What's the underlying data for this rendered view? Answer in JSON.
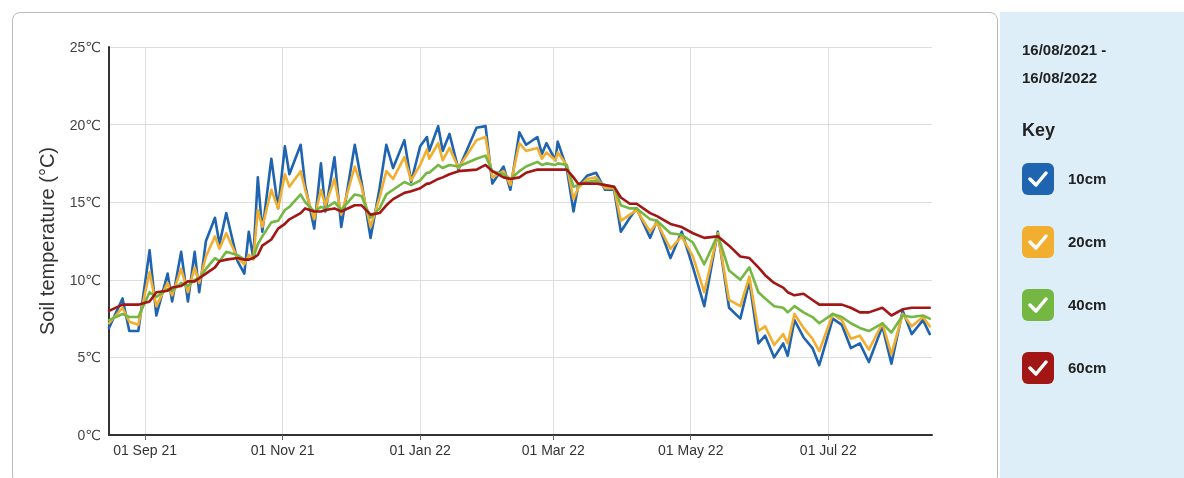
{
  "chart_data": {
    "type": "line",
    "subtitle": "16/08/2021 - 16/08/2022",
    "ylabel": "Soil temperature (°C)",
    "legend_title": "Key",
    "legend": "right",
    "grid": true,
    "marker": "none",
    "line_style": "solid",
    "xlim": [
      "2021-08-16",
      "2022-08-16"
    ],
    "xticks": [
      {
        "value": "2021-09-01",
        "label": "01 Sep 21"
      },
      {
        "value": "2021-11-01",
        "label": "01 Nov 21"
      },
      {
        "value": "2022-01-01",
        "label": "01 Jan 22"
      },
      {
        "value": "2022-03-01",
        "label": "01 Mar 22"
      },
      {
        "value": "2022-05-01",
        "label": "01 May 22"
      },
      {
        "value": "2022-07-01",
        "label": "01 Jul 22"
      }
    ],
    "ylim": [
      0,
      25
    ],
    "yticks": [
      {
        "value": 0,
        "label": "0℃"
      },
      {
        "value": 5,
        "label": "5℃"
      },
      {
        "value": 10,
        "label": "10℃"
      },
      {
        "value": 15,
        "label": "15℃"
      },
      {
        "value": 20,
        "label": "20℃"
      },
      {
        "value": 25,
        "label": "25℃"
      }
    ],
    "x": [
      "2021-08-16",
      "2021-08-22",
      "2021-08-25",
      "2021-08-29",
      "2021-09-03",
      "2021-09-06",
      "2021-09-11",
      "2021-09-13",
      "2021-09-17",
      "2021-09-20",
      "2021-09-23",
      "2021-09-25",
      "2021-09-28",
      "2021-10-02",
      "2021-10-04",
      "2021-10-07",
      "2021-10-12",
      "2021-10-15",
      "2021-10-17",
      "2021-10-19",
      "2021-10-21",
      "2021-10-23",
      "2021-10-27",
      "2021-10-30",
      "2021-11-02",
      "2021-11-04",
      "2021-11-09",
      "2021-11-11",
      "2021-11-15",
      "2021-11-18",
      "2021-11-20",
      "2021-11-24",
      "2021-11-27",
      "2021-12-03",
      "2021-12-06",
      "2021-12-10",
      "2021-12-14",
      "2021-12-17",
      "2021-12-20",
      "2021-12-25",
      "2021-12-28",
      "2022-01-01",
      "2022-01-04",
      "2022-01-05",
      "2022-01-09",
      "2022-01-11",
      "2022-01-14",
      "2022-01-18",
      "2022-01-26",
      "2022-01-30",
      "2022-02-02",
      "2022-02-07",
      "2022-02-10",
      "2022-02-14",
      "2022-02-17",
      "2022-02-22",
      "2022-02-24",
      "2022-02-26",
      "2022-03-02",
      "2022-03-03",
      "2022-03-07",
      "2022-03-10",
      "2022-03-12",
      "2022-03-16",
      "2022-03-20",
      "2022-03-24",
      "2022-03-28",
      "2022-03-31",
      "2022-04-04",
      "2022-04-07",
      "2022-04-13",
      "2022-04-16",
      "2022-04-22",
      "2022-04-27",
      "2022-05-02",
      "2022-05-07",
      "2022-05-13",
      "2022-05-18",
      "2022-05-23",
      "2022-05-27",
      "2022-05-31",
      "2022-06-03",
      "2022-06-07",
      "2022-06-11",
      "2022-06-13",
      "2022-06-16",
      "2022-06-20",
      "2022-06-24",
      "2022-06-27",
      "2022-07-03",
      "2022-07-07",
      "2022-07-11",
      "2022-07-15",
      "2022-07-19",
      "2022-07-25",
      "2022-07-29",
      "2022-08-03",
      "2022-08-07",
      "2022-08-12",
      "2022-08-15"
    ],
    "series": [
      {
        "name": "10cm",
        "color": "#1f64b0",
        "values": [
          6.9,
          8.8,
          6.7,
          6.7,
          11.9,
          7.7,
          10.4,
          8.6,
          11.8,
          8.6,
          11.8,
          9.2,
          12.5,
          14.0,
          12.3,
          14.3,
          11.2,
          10.4,
          13.1,
          11.4,
          16.6,
          13.1,
          17.8,
          14.6,
          18.6,
          16.8,
          18.7,
          16.1,
          13.3,
          17.5,
          14.4,
          17.9,
          13.4,
          18.7,
          16.3,
          12.7,
          15.9,
          18.7,
          17.2,
          19.0,
          16.3,
          18.6,
          19.2,
          18.3,
          19.9,
          18.3,
          19.4,
          17.1,
          19.8,
          19.9,
          16.2,
          17.3,
          15.8,
          19.5,
          18.7,
          19.2,
          18.1,
          18.8,
          17.7,
          18.9,
          17.2,
          14.4,
          16.0,
          16.7,
          16.9,
          15.8,
          15.8,
          13.1,
          14.0,
          14.6,
          12.7,
          13.8,
          11.4,
          13.1,
          10.8,
          8.3,
          13.1,
          8.2,
          7.5,
          9.9,
          5.9,
          6.4,
          5.0,
          5.9,
          5.1,
          7.4,
          6.3,
          5.6,
          4.5,
          7.5,
          7.1,
          5.6,
          5.9,
          4.7,
          7.0,
          4.6,
          8.0,
          6.5,
          7.4,
          6.5
        ]
      },
      {
        "name": "20cm",
        "color": "#f2ae2e",
        "values": [
          7.2,
          8.2,
          7.3,
          7.1,
          10.5,
          8.3,
          9.8,
          9.0,
          10.7,
          9.2,
          10.8,
          9.8,
          11.5,
          12.8,
          12.0,
          13.0,
          11.4,
          11.0,
          11.6,
          11.3,
          14.5,
          13.4,
          15.8,
          14.6,
          16.8,
          16.0,
          17.0,
          15.8,
          13.9,
          15.8,
          14.8,
          16.5,
          14.2,
          17.3,
          16.0,
          13.4,
          15.3,
          17.0,
          16.5,
          17.9,
          16.4,
          17.4,
          18.4,
          17.8,
          18.8,
          17.7,
          18.5,
          17.2,
          19.0,
          19.2,
          16.6,
          17.0,
          16.1,
          18.8,
          18.3,
          18.5,
          17.8,
          18.2,
          17.7,
          18.2,
          17.4,
          15.2,
          15.9,
          16.5,
          16.6,
          15.9,
          15.9,
          13.8,
          14.2,
          14.5,
          13.1,
          13.7,
          12.0,
          12.8,
          11.5,
          9.2,
          13.0,
          8.7,
          8.3,
          10.2,
          6.7,
          7.0,
          5.8,
          6.5,
          5.9,
          7.8,
          6.9,
          6.2,
          5.4,
          7.8,
          7.4,
          6.2,
          6.4,
          5.5,
          7.2,
          5.2,
          7.8,
          7.0,
          7.6,
          7.0
        ]
      },
      {
        "name": "40cm",
        "color": "#74b843",
        "values": [
          7.4,
          7.8,
          7.6,
          7.6,
          9.2,
          8.9,
          9.4,
          9.3,
          9.8,
          9.6,
          10.0,
          10.1,
          10.7,
          11.4,
          11.2,
          11.8,
          11.6,
          11.3,
          11.3,
          11.4,
          12.3,
          12.8,
          13.7,
          13.8,
          14.5,
          14.7,
          15.5,
          15.0,
          14.4,
          14.7,
          14.6,
          15.0,
          14.5,
          15.5,
          15.4,
          14.0,
          14.6,
          15.5,
          15.8,
          16.3,
          16.1,
          16.4,
          16.9,
          16.9,
          17.4,
          17.2,
          17.4,
          17.3,
          17.8,
          18.0,
          17.0,
          16.8,
          16.5,
          17.0,
          17.3,
          17.6,
          17.4,
          17.5,
          17.4,
          17.5,
          17.4,
          16.0,
          16.1,
          16.3,
          16.4,
          16.1,
          16.0,
          14.8,
          14.6,
          14.6,
          13.9,
          13.8,
          13.0,
          12.9,
          12.4,
          11.0,
          12.9,
          10.6,
          10.0,
          10.8,
          9.2,
          8.8,
          8.3,
          8.2,
          7.9,
          8.3,
          7.9,
          7.6,
          7.2,
          7.8,
          7.6,
          7.2,
          6.9,
          6.7,
          7.2,
          6.6,
          7.7,
          7.6,
          7.7,
          7.5
        ]
      },
      {
        "name": "60cm",
        "color": "#a31616",
        "values": [
          8.0,
          8.4,
          8.4,
          8.4,
          8.6,
          9.2,
          9.3,
          9.5,
          9.6,
          9.9,
          9.9,
          10.1,
          10.4,
          10.8,
          11.2,
          11.3,
          11.4,
          11.3,
          11.3,
          11.4,
          11.6,
          12.2,
          12.6,
          13.3,
          13.6,
          13.9,
          14.3,
          14.6,
          14.4,
          14.4,
          14.5,
          14.6,
          14.4,
          14.8,
          14.8,
          14.2,
          14.3,
          14.8,
          15.2,
          15.6,
          15.7,
          15.9,
          16.2,
          16.2,
          16.5,
          16.6,
          16.8,
          17.0,
          17.1,
          17.4,
          17.0,
          16.6,
          16.5,
          16.6,
          16.9,
          17.1,
          17.1,
          17.1,
          17.1,
          17.1,
          17.1,
          16.6,
          16.2,
          16.2,
          16.2,
          16.1,
          16.0,
          15.3,
          14.9,
          14.9,
          14.3,
          14.1,
          13.6,
          13.4,
          13.0,
          12.7,
          12.8,
          12.2,
          11.5,
          11.4,
          10.8,
          10.3,
          9.8,
          9.5,
          9.2,
          9.0,
          9.1,
          8.7,
          8.4,
          8.4,
          8.4,
          8.2,
          7.9,
          7.9,
          8.2,
          7.7,
          8.1,
          8.2,
          8.2,
          8.2
        ]
      }
    ]
  }
}
